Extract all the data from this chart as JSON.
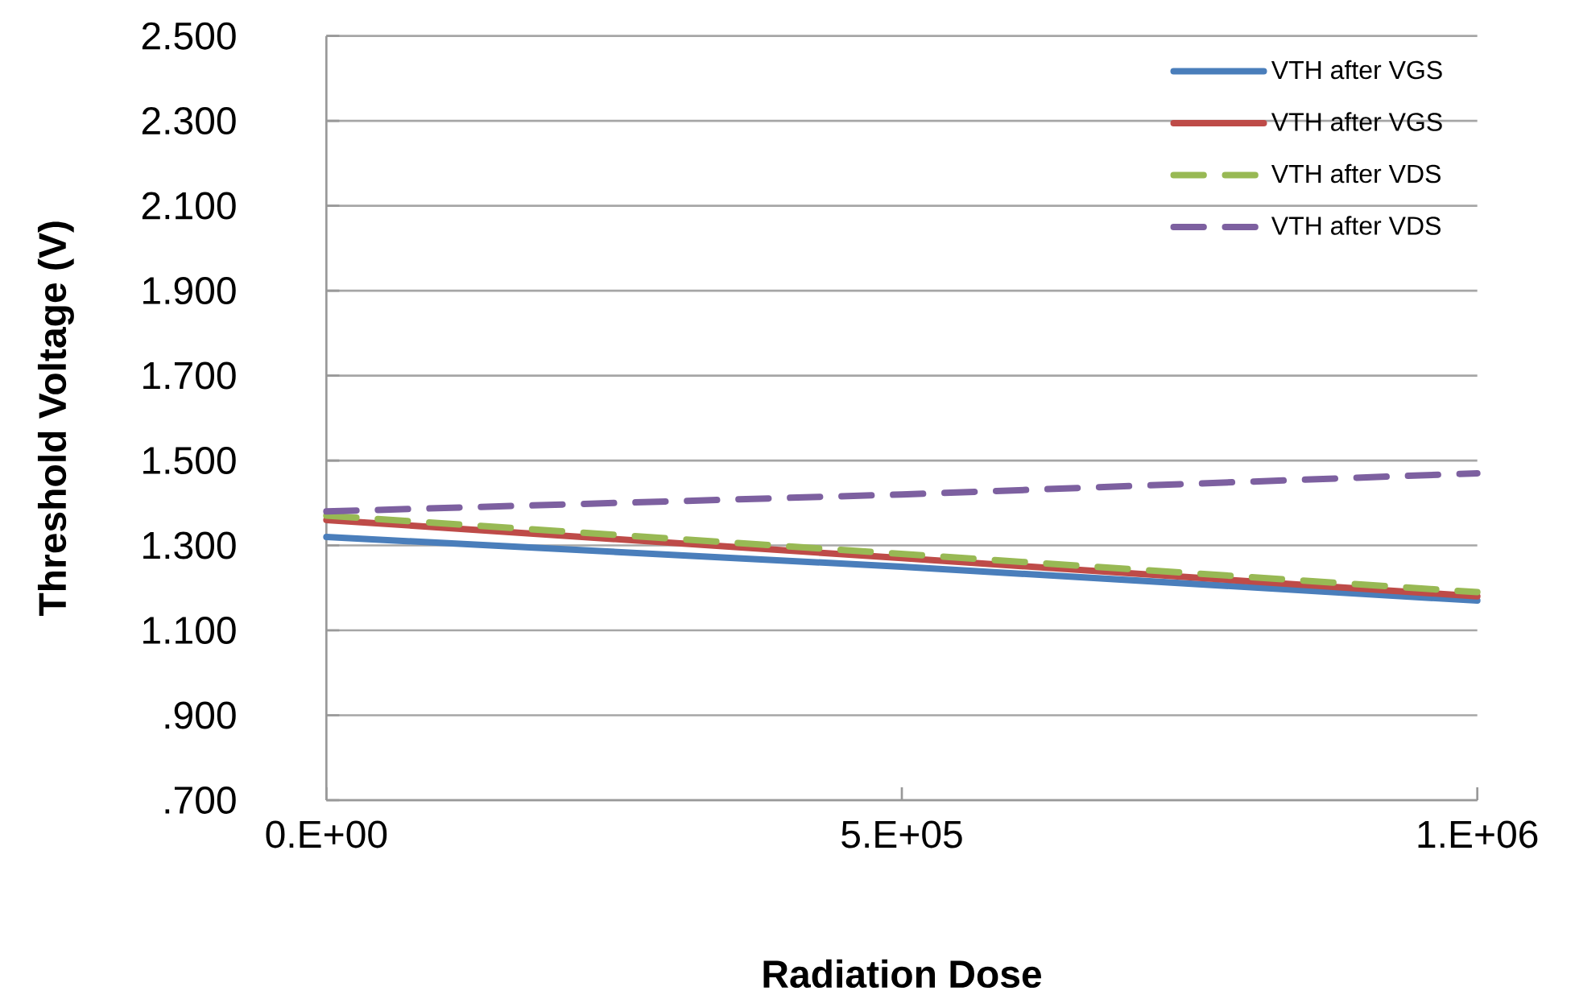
{
  "chart_data": {
    "type": "line",
    "xlabel": "Radiation Dose",
    "ylabel": "Threshold Voltage (V)",
    "categories": [
      "0.E+00",
      "5.E+05",
      "1.E+06"
    ],
    "series": [
      {
        "name": "VTH after VGS",
        "color": "#4a7ebb",
        "line_style": "solid",
        "values": [
          1.32,
          1.25,
          1.17
        ]
      },
      {
        "name": "VTH after VGS",
        "color": "#be4b48",
        "line_style": "solid",
        "values": [
          1.36,
          1.27,
          1.18
        ]
      },
      {
        "name": "VTH after VDS",
        "color": "#98b954",
        "line_style": "dashed",
        "values": [
          1.37,
          1.28,
          1.19
        ]
      },
      {
        "name": "VTH after VDS",
        "color": "#7d60a0",
        "line_style": "dashed",
        "values": [
          1.38,
          1.42,
          1.47
        ]
      }
    ],
    "ylim": [
      0.7,
      2.5
    ],
    "yticks": [
      {
        "value": 0.7,
        "label": ".700"
      },
      {
        "value": 0.9,
        "label": ".900"
      },
      {
        "value": 1.1,
        "label": "1.100"
      },
      {
        "value": 1.3,
        "label": "1.300"
      },
      {
        "value": 1.5,
        "label": "1.500"
      },
      {
        "value": 1.7,
        "label": "1.700"
      },
      {
        "value": 1.9,
        "label": "1.900"
      },
      {
        "value": 2.1,
        "label": "2.100"
      },
      {
        "value": 2.3,
        "label": "2.300"
      },
      {
        "value": 2.5,
        "label": "2.500"
      }
    ],
    "grid": "y",
    "legend": "top right",
    "marker": "none"
  }
}
